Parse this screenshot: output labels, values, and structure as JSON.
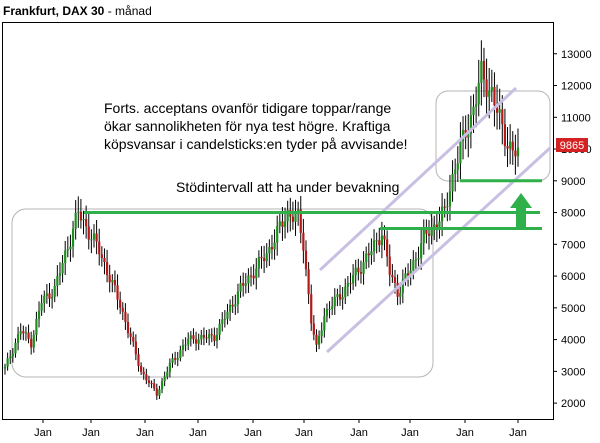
{
  "header": {
    "instrument": "Frankfurt, DAX 30",
    "separator": "-",
    "interval": "månad"
  },
  "colors": {
    "up": "#1d8f1d",
    "down": "#b51818",
    "support_line": "#2fb04a",
    "channel": "#c9bfe3",
    "arrow": "#2fb04a",
    "price_badge": "#d42121",
    "box": "#b5b5b5",
    "axis": "#000000"
  },
  "chart_data": {
    "type": "candlestick",
    "interval": "month",
    "ylim": [
      1500,
      14000
    ],
    "yticks": [
      2000,
      3000,
      4000,
      5000,
      6000,
      7000,
      8000,
      9000,
      10000,
      11000,
      12000,
      13000
    ],
    "ytick_labels": [
      "2000",
      "3000",
      "4000",
      "5000",
      "6000",
      "7000",
      "8000",
      "9000",
      "10000",
      "11000",
      "12000",
      "13000"
    ],
    "xtick_labels": [
      "Jan",
      "Jan",
      "Jan",
      "Jan",
      "Jan",
      "Jan",
      "Jan",
      "Jan",
      "Jan",
      "Jan"
    ],
    "last_price": "9865",
    "annotations": [
      {
        "text": "Forts. acceptans ovanför tidigare toppar/range"
      },
      {
        "text": "ökar sannolikheten för nya test högre. Kraftiga"
      },
      {
        "text": "köpsvansar i candelsticks:en tyder på avvisande!"
      },
      {
        "text": "Stödintervall att ha under bevakning"
      }
    ],
    "support_levels": [
      9000,
      8000,
      7500
    ],
    "path": [
      [
        0,
        3100
      ],
      [
        6,
        4300
      ],
      [
        10,
        3900
      ],
      [
        14,
        5200
      ],
      [
        19,
        5600
      ],
      [
        28,
        8000
      ],
      [
        36,
        6800
      ],
      [
        44,
        5100
      ],
      [
        52,
        3000
      ],
      [
        58,
        2300
      ],
      [
        63,
        3200
      ],
      [
        70,
        4000
      ],
      [
        80,
        4100
      ],
      [
        90,
        5600
      ],
      [
        100,
        6700
      ],
      [
        108,
        8000
      ],
      [
        112,
        7800
      ],
      [
        114,
        7000
      ],
      [
        117,
        4600
      ],
      [
        119,
        3700
      ],
      [
        122,
        4800
      ],
      [
        130,
        5600
      ],
      [
        140,
        6800
      ],
      [
        144,
        7400
      ],
      [
        147,
        6100
      ],
      [
        150,
        5500
      ],
      [
        155,
        6200
      ],
      [
        160,
        7200
      ],
      [
        168,
        8000
      ],
      [
        172,
        9500
      ],
      [
        178,
        11000
      ],
      [
        182,
        12300
      ],
      [
        186,
        11800
      ],
      [
        190,
        10600
      ],
      [
        194,
        9900
      ],
      [
        196,
        9865
      ]
    ]
  }
}
